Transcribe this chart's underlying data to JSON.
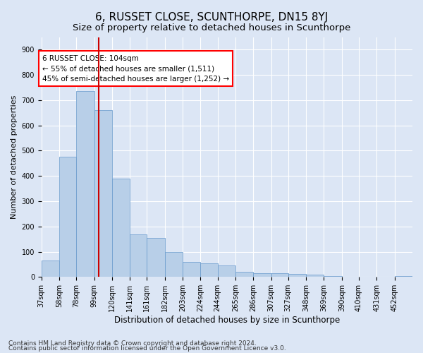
{
  "title": "6, RUSSET CLOSE, SCUNTHORPE, DN15 8YJ",
  "subtitle": "Size of property relative to detached houses in Scunthorpe",
  "xlabel": "Distribution of detached houses by size in Scunthorpe",
  "ylabel": "Number of detached properties",
  "footnote1": "Contains HM Land Registry data © Crown copyright and database right 2024.",
  "footnote2": "Contains public sector information licensed under the Open Government Licence v3.0.",
  "annotation_line1": "6 RUSSET CLOSE: 104sqm",
  "annotation_line2": "← 55% of detached houses are smaller (1,511)",
  "annotation_line3": "45% of semi-detached houses are larger (1,252) →",
  "bar_color": "#b8cfe8",
  "bar_edge_color": "#6699cc",
  "red_line_color": "#cc0000",
  "red_line_x": 104,
  "categories": [
    "37sqm",
    "58sqm",
    "78sqm",
    "99sqm",
    "120sqm",
    "141sqm",
    "161sqm",
    "182sqm",
    "203sqm",
    "224sqm",
    "244sqm",
    "265sqm",
    "286sqm",
    "307sqm",
    "327sqm",
    "348sqm",
    "369sqm",
    "390sqm",
    "410sqm",
    "431sqm",
    "452sqm"
  ],
  "bin_edges": [
    37,
    58,
    78,
    99,
    120,
    141,
    161,
    182,
    203,
    224,
    244,
    265,
    286,
    307,
    327,
    348,
    369,
    390,
    410,
    431,
    452,
    473
  ],
  "values": [
    65,
    475,
    735,
    660,
    390,
    170,
    155,
    100,
    60,
    55,
    45,
    20,
    15,
    15,
    12,
    8,
    3,
    0,
    0,
    0,
    5
  ],
  "ylim": [
    0,
    950
  ],
  "yticks": [
    0,
    100,
    200,
    300,
    400,
    500,
    600,
    700,
    800,
    900
  ],
  "background_color": "#dce6f5",
  "plot_bg_color": "#dce6f5",
  "grid_color": "#ffffff",
  "title_fontsize": 11,
  "subtitle_fontsize": 9.5,
  "annotation_fontsize": 7.5,
  "axis_label_fontsize": 8,
  "tick_fontsize": 7,
  "xlabel_fontsize": 8.5
}
